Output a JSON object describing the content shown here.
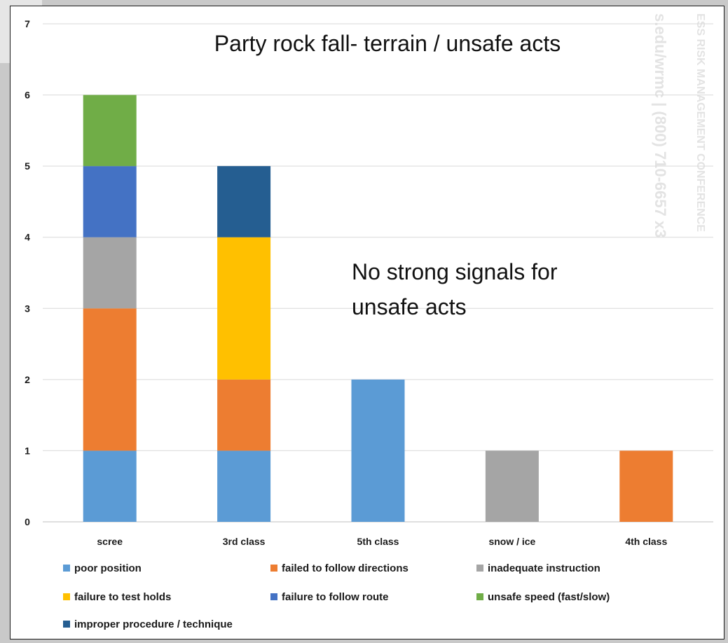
{
  "watermark": {
    "line1": "ESS RISK MANAGEMENT CONFERENCE",
    "line2": "s.edu/wrmc | (800) 710-6657 x3"
  },
  "chart_data": {
    "type": "bar",
    "stacked": true,
    "title": "Party rock fall- terrain / unsafe acts",
    "annotation": [
      "No strong signals for",
      "unsafe acts"
    ],
    "xlabel": "",
    "ylabel": "",
    "ylim": [
      0,
      7
    ],
    "yticks": [
      0,
      1,
      2,
      3,
      4,
      5,
      6,
      7
    ],
    "grid": true,
    "legend_position": "bottom",
    "categories": [
      "scree",
      "3rd class",
      "5th class",
      "snow / ice",
      "4th class"
    ],
    "series": [
      {
        "name": "poor position",
        "color": "#5b9bd5",
        "values": [
          1,
          1,
          2,
          0,
          0
        ]
      },
      {
        "name": "failed to follow directions",
        "color": "#ed7d31",
        "values": [
          2,
          1,
          0,
          0,
          1
        ]
      },
      {
        "name": "inadequate instruction",
        "color": "#a5a5a5",
        "values": [
          1,
          0,
          0,
          1,
          0
        ]
      },
      {
        "name": "failure to test holds",
        "color": "#ffc000",
        "values": [
          0,
          2,
          0,
          0,
          0
        ]
      },
      {
        "name": "failure to follow route",
        "color": "#4472c4",
        "values": [
          1,
          0,
          0,
          0,
          0
        ]
      },
      {
        "name": "unsafe speed (fast/slow)",
        "color": "#70ad47",
        "values": [
          1,
          0,
          0,
          0,
          0
        ]
      },
      {
        "name": "improper procedure / technique",
        "color": "#255e91",
        "values": [
          0,
          1,
          0,
          0,
          0
        ]
      }
    ]
  }
}
